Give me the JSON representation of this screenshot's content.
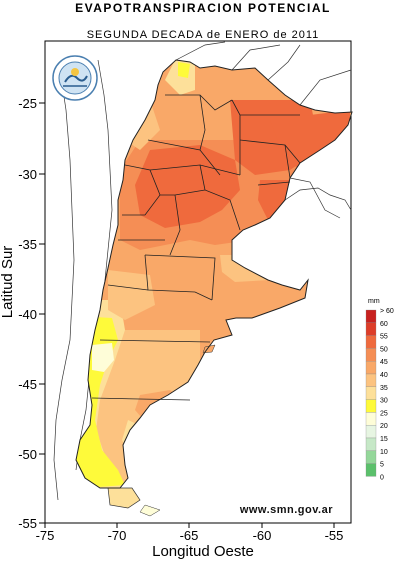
{
  "title": "EVAPOTRANSPIRACION POTENCIAL",
  "subtitle": "SEGUNDA DECADA de ENERO de 2011",
  "website": "www.smn.gov.ar",
  "logo": "smn-logo",
  "chart_data": {
    "type": "heatmap",
    "xlabel": "Longitud Oeste",
    "ylabel": "Latitud Sur",
    "x_ticks": [
      "-75",
      "-70",
      "-65",
      "-60",
      "-55"
    ],
    "y_ticks": [
      "-25",
      "-30",
      "-35",
      "-40",
      "-45",
      "-50",
      "-55"
    ],
    "xlim": [
      -75,
      -53.5
    ],
    "ylim": [
      -55.2,
      -21.2
    ],
    "legend": {
      "unit": "mm",
      "placement": "right",
      "labels": [
        "> 60",
        "60",
        "55",
        "50",
        "45",
        "40",
        "35",
        "30",
        "25",
        "20",
        "15",
        "10",
        "5",
        "0"
      ],
      "colors": [
        "#c8211f",
        "#dd3d29",
        "#ef6a3d",
        "#f58e55",
        "#f9a868",
        "#fcc380",
        "#fde09a",
        "#fefa3a",
        "#fefdd8",
        "#e7f5e2",
        "#c6e8c7",
        "#94d79a",
        "#5bc06b"
      ]
    }
  }
}
